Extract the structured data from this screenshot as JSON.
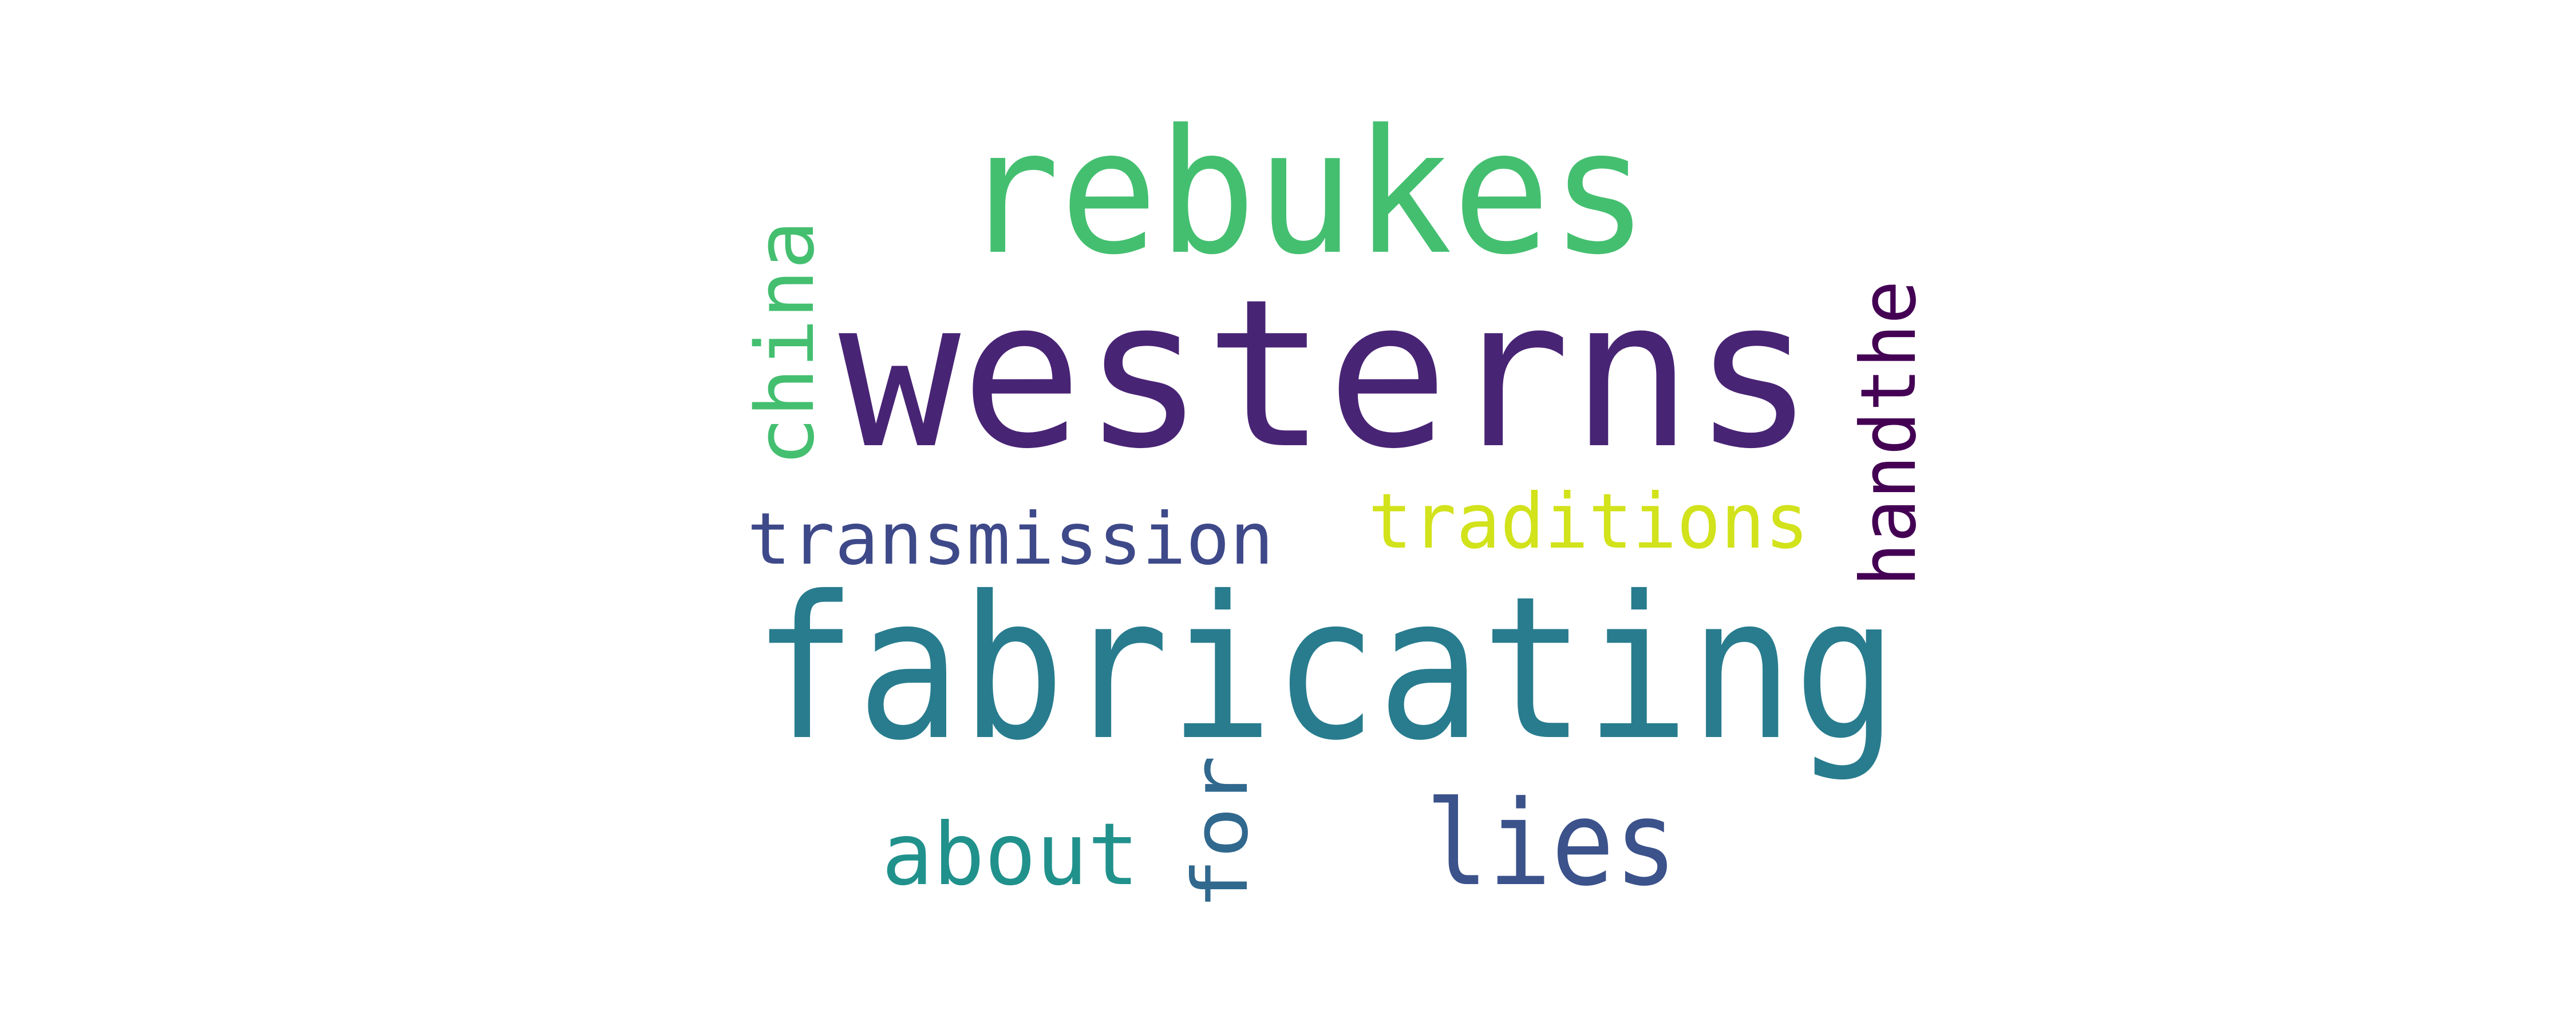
{
  "word_cloud": {
    "words": [
      {
        "text": "westerns",
        "color": "#482475",
        "orientation": "horizontal"
      },
      {
        "text": "fabricating",
        "color": "#287c8e",
        "orientation": "horizontal"
      },
      {
        "text": "rebukes",
        "color": "#44bf70",
        "orientation": "horizontal"
      },
      {
        "text": "lies",
        "color": "#3b528b",
        "orientation": "horizontal"
      },
      {
        "text": "china",
        "color": "#44bf70",
        "orientation": "vertical"
      },
      {
        "text": "handthe",
        "color": "#440154",
        "orientation": "vertical"
      },
      {
        "text": "transmission",
        "color": "#3e4989",
        "orientation": "horizontal"
      },
      {
        "text": "traditions",
        "color": "#d2e21b",
        "orientation": "horizontal"
      },
      {
        "text": "about",
        "color": "#21918c",
        "orientation": "horizontal"
      },
      {
        "text": "for",
        "color": "#31688e",
        "orientation": "vertical"
      }
    ]
  }
}
